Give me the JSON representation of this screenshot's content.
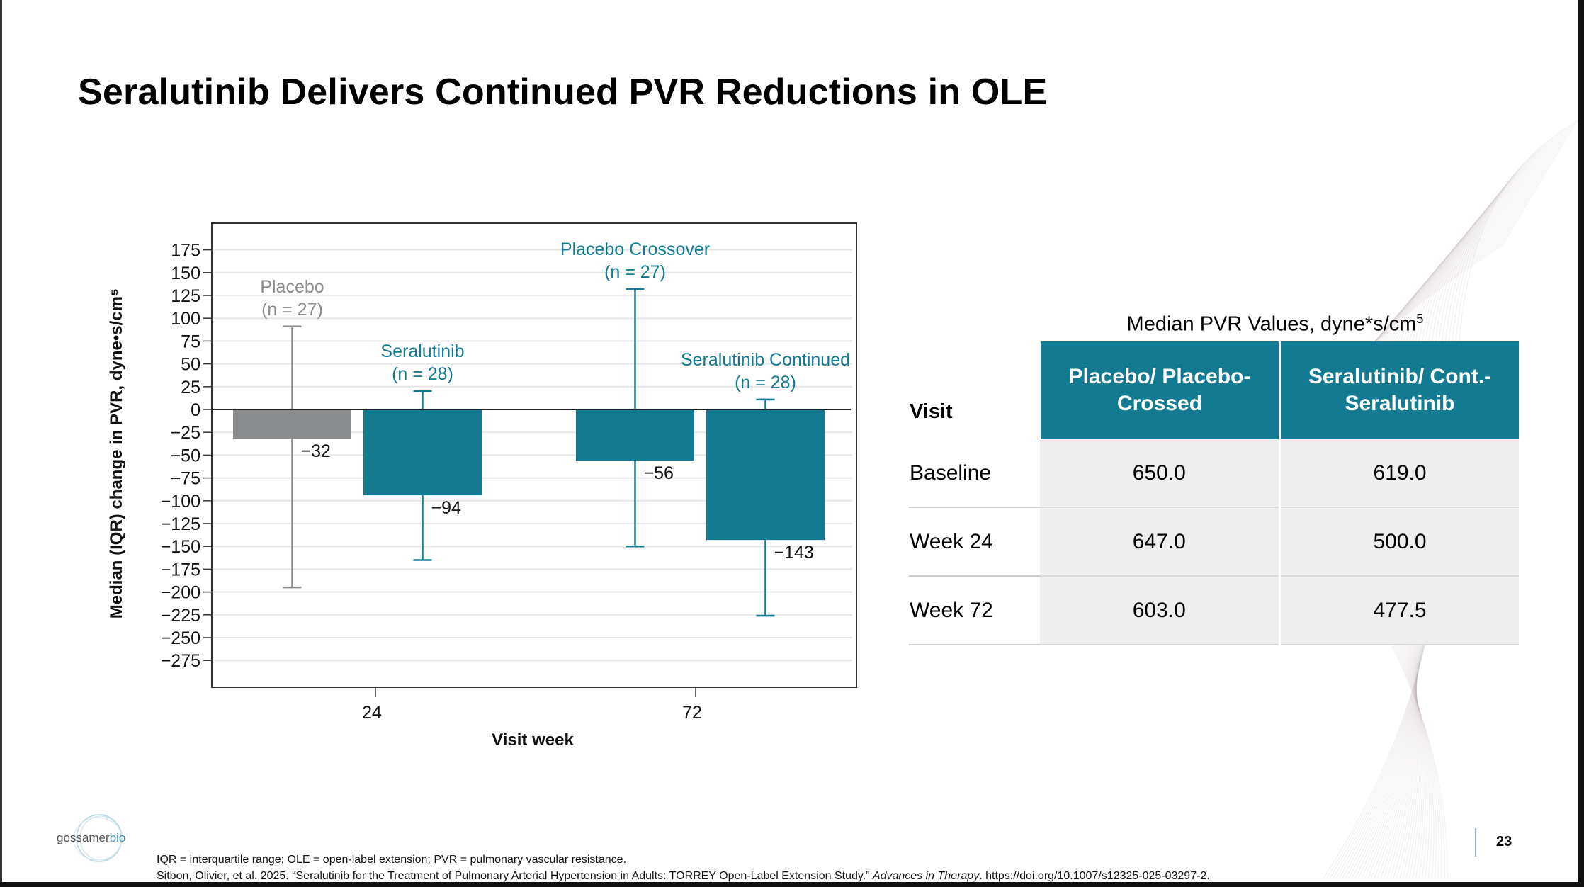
{
  "slide": {
    "title": "Seralutinib Delivers Continued PVR Reductions in OLE",
    "page_number": "23",
    "logo_text": "gossamerbio",
    "footnotes": [
      "IQR = interquartile range; OLE = open-label extension; PVR = pulmonary vascular resistance.",
      "Sitbon, Olivier, et al. 2025. “Seralutinib for the Treatment of Pulmonary Arterial Hypertension in Adults: TORREY Open-Label Extension Study.” ",
      "Advances in Therapy",
      ". https://doi.org/10.1007/s12325-025-03297-2."
    ]
  },
  "chart_data": {
    "type": "bar",
    "xlabel": "Visit week",
    "ylabel": "Median (IQR) change in PVR, dyne•s/cm⁵",
    "ylim": [
      -300,
      200
    ],
    "yticks": [
      175,
      150,
      125,
      100,
      75,
      50,
      25,
      0,
      -25,
      -50,
      -75,
      -100,
      -125,
      -150,
      -175,
      -200,
      -225,
      -250,
      -275
    ],
    "categories": [
      "24",
      "72"
    ],
    "grid": true,
    "bars": [
      {
        "category": "24",
        "name": "Placebo",
        "n": "(n = 27)",
        "value": -32,
        "value_label": "−32",
        "iqr": [
          -195,
          91
        ],
        "color": "#8a8b8d"
      },
      {
        "category": "24",
        "name": "Seralutinib",
        "n": "(n = 28)",
        "value": -94,
        "value_label": "−94",
        "iqr": [
          -165,
          20
        ],
        "color": "#127b91"
      },
      {
        "category": "72",
        "name": "Placebo Crossover",
        "n": "(n = 27)",
        "value": -56,
        "value_label": "−56",
        "iqr": [
          -150,
          132
        ],
        "color": "#127b91"
      },
      {
        "category": "72",
        "name": "Seralutinib Continued",
        "n": "(n = 28)",
        "value": -143,
        "value_label": "−143",
        "iqr": [
          -226,
          11
        ],
        "color": "#127b91"
      }
    ]
  },
  "table": {
    "caption": "Median PVR Values, dyne*s/cm",
    "caption_sup": "5",
    "headers": [
      "Visit",
      "Placebo/ Placebo-Crossed",
      "Seralutinib/ Cont.- Seralutinib"
    ],
    "rows": [
      [
        "Baseline",
        "650.0",
        "619.0"
      ],
      [
        "Week 24",
        "647.0",
        "500.0"
      ],
      [
        "Week 72",
        "603.0",
        "477.5"
      ]
    ]
  }
}
